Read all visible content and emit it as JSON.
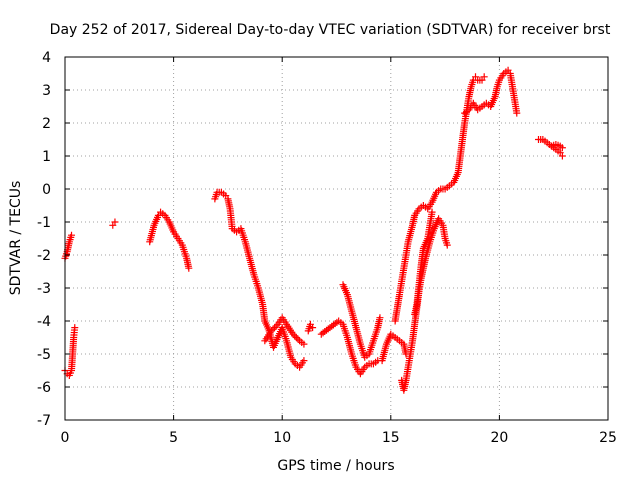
{
  "chart_data": {
    "type": "scatter",
    "title": "Day 252 of 2017, Sidereal Day-to-day VTEC variation (SDTVAR) for receiver brst",
    "xlabel": "GPS time / hours",
    "ylabel": "SDTVAR / TECUs",
    "xlim": [
      0,
      25
    ],
    "ylim": [
      -7,
      4
    ],
    "xticks": [
      0,
      5,
      10,
      15,
      20,
      25
    ],
    "yticks": [
      -7,
      -6,
      -5,
      -4,
      -3,
      -2,
      -1,
      0,
      1,
      2,
      3,
      4
    ],
    "grid": true,
    "marker": "+",
    "colors": {
      "series": "#ff0000",
      "grid": "#a0a0a0",
      "axes": "#000000"
    },
    "segments": [
      [
        [
          0.0,
          -2.1
        ],
        [
          0.1,
          -1.9
        ],
        [
          0.2,
          -1.6
        ],
        [
          0.3,
          -1.4
        ]
      ],
      [
        [
          0.0,
          -5.5
        ],
        [
          0.1,
          -5.6
        ],
        [
          0.2,
          -5.65
        ],
        [
          0.3,
          -5.5
        ],
        [
          0.35,
          -5.0
        ],
        [
          0.4,
          -4.5
        ],
        [
          0.45,
          -4.2
        ]
      ],
      [
        [
          2.2,
          -1.1
        ],
        [
          2.3,
          -1.0
        ]
      ],
      [
        [
          3.9,
          -1.6
        ],
        [
          4.1,
          -1.1
        ],
        [
          4.3,
          -0.8
        ],
        [
          4.4,
          -0.7
        ],
        [
          4.6,
          -0.8
        ],
        [
          4.8,
          -1.0
        ],
        [
          5.0,
          -1.3
        ],
        [
          5.2,
          -1.5
        ],
        [
          5.4,
          -1.7
        ],
        [
          5.6,
          -2.1
        ],
        [
          5.7,
          -2.4
        ]
      ],
      [
        [
          6.9,
          -0.3
        ],
        [
          7.0,
          -0.1
        ],
        [
          7.2,
          -0.1
        ],
        [
          7.4,
          -0.2
        ],
        [
          7.5,
          -0.3
        ],
        [
          7.6,
          -0.6
        ],
        [
          7.7,
          -1.2
        ],
        [
          7.9,
          -1.3
        ],
        [
          8.1,
          -1.2
        ],
        [
          8.3,
          -1.6
        ],
        [
          8.5,
          -2.1
        ],
        [
          8.7,
          -2.6
        ],
        [
          8.9,
          -3.0
        ],
        [
          9.1,
          -3.5
        ],
        [
          9.2,
          -4.0
        ],
        [
          9.4,
          -4.3
        ],
        [
          9.6,
          -4.8
        ],
        [
          9.8,
          -4.5
        ],
        [
          10.0,
          -4.2
        ],
        [
          10.2,
          -4.6
        ],
        [
          10.4,
          -5.1
        ],
        [
          10.6,
          -5.3
        ],
        [
          10.8,
          -5.4
        ],
        [
          11.0,
          -5.2
        ]
      ],
      [
        [
          9.2,
          -4.6
        ],
        [
          9.5,
          -4.3
        ],
        [
          9.8,
          -4.1
        ],
        [
          10.0,
          -3.9
        ],
        [
          10.2,
          -4.1
        ],
        [
          10.5,
          -4.4
        ],
        [
          10.8,
          -4.6
        ],
        [
          11.0,
          -4.7
        ]
      ],
      [
        [
          11.2,
          -4.3
        ],
        [
          11.3,
          -4.1
        ],
        [
          11.4,
          -4.2
        ]
      ],
      [
        [
          11.8,
          -4.4
        ],
        [
          12.2,
          -4.2
        ],
        [
          12.6,
          -4.0
        ],
        [
          12.8,
          -4.1
        ],
        [
          13.0,
          -4.5
        ],
        [
          13.2,
          -5.0
        ],
        [
          13.4,
          -5.4
        ],
        [
          13.6,
          -5.6
        ],
        [
          13.8,
          -5.4
        ],
        [
          14.0,
          -5.3
        ],
        [
          14.2,
          -5.3
        ],
        [
          14.4,
          -5.2
        ]
      ],
      [
        [
          12.8,
          -2.9
        ],
        [
          13.0,
          -3.2
        ],
        [
          13.2,
          -3.7
        ],
        [
          13.4,
          -4.2
        ],
        [
          13.6,
          -4.7
        ],
        [
          13.8,
          -5.1
        ],
        [
          14.0,
          -5.0
        ],
        [
          14.2,
          -4.6
        ],
        [
          14.4,
          -4.2
        ],
        [
          14.5,
          -3.9
        ]
      ],
      [
        [
          14.6,
          -5.2
        ],
        [
          14.8,
          -4.7
        ],
        [
          15.0,
          -4.4
        ],
        [
          15.2,
          -4.5
        ],
        [
          15.4,
          -4.6
        ],
        [
          15.6,
          -4.7
        ],
        [
          15.7,
          -5.0
        ]
      ],
      [
        [
          15.2,
          -4.0
        ],
        [
          15.4,
          -3.2
        ],
        [
          15.5,
          -2.8
        ],
        [
          15.6,
          -2.4
        ],
        [
          15.7,
          -2.0
        ],
        [
          15.8,
          -1.6
        ],
        [
          16.0,
          -1.1
        ],
        [
          16.1,
          -0.8
        ],
        [
          16.3,
          -0.6
        ],
        [
          16.5,
          -0.5
        ],
        [
          16.7,
          -0.6
        ],
        [
          16.9,
          -0.4
        ],
        [
          17.1,
          -0.1
        ],
        [
          17.3,
          0.0
        ],
        [
          17.5,
          0.0
        ],
        [
          17.7,
          0.1
        ],
        [
          17.9,
          0.2
        ],
        [
          18.1,
          0.5
        ],
        [
          18.2,
          1.0
        ],
        [
          18.3,
          1.5
        ],
        [
          18.4,
          2.0
        ],
        [
          18.5,
          2.4
        ],
        [
          18.6,
          2.8
        ],
        [
          18.7,
          3.1
        ],
        [
          18.8,
          3.3
        ],
        [
          18.9,
          3.4
        ],
        [
          19.0,
          3.3
        ],
        [
          19.2,
          3.3
        ],
        [
          19.3,
          3.4
        ]
      ],
      [
        [
          15.5,
          -5.8
        ],
        [
          15.6,
          -6.1
        ],
        [
          15.7,
          -5.8
        ],
        [
          15.8,
          -5.4
        ],
        [
          15.9,
          -5.0
        ],
        [
          16.0,
          -4.6
        ],
        [
          16.1,
          -4.1
        ],
        [
          16.2,
          -3.6
        ],
        [
          16.3,
          -3.1
        ],
        [
          16.4,
          -2.7
        ],
        [
          16.5,
          -2.4
        ],
        [
          16.6,
          -2.1
        ],
        [
          16.8,
          -1.6
        ],
        [
          17.0,
          -1.2
        ],
        [
          17.2,
          -0.9
        ],
        [
          17.4,
          -1.1
        ],
        [
          17.5,
          -1.5
        ],
        [
          17.6,
          -1.7
        ]
      ],
      [
        [
          16.1,
          -3.8
        ],
        [
          16.2,
          -3.5
        ],
        [
          16.3,
          -2.9
        ],
        [
          16.4,
          -2.3
        ],
        [
          16.5,
          -1.8
        ],
        [
          16.7,
          -1.5
        ],
        [
          16.8,
          -1.1
        ],
        [
          16.9,
          -0.7
        ]
      ],
      [
        [
          18.4,
          2.3
        ],
        [
          18.6,
          2.4
        ],
        [
          18.8,
          2.6
        ],
        [
          19.0,
          2.4
        ],
        [
          19.2,
          2.5
        ],
        [
          19.4,
          2.6
        ],
        [
          19.6,
          2.5
        ],
        [
          19.8,
          2.8
        ],
        [
          19.9,
          3.1
        ],
        [
          20.0,
          3.3
        ],
        [
          20.2,
          3.5
        ],
        [
          20.4,
          3.6
        ],
        [
          20.5,
          3.5
        ],
        [
          20.6,
          3.1
        ],
        [
          20.7,
          2.7
        ],
        [
          20.8,
          2.3
        ]
      ],
      [
        [
          21.8,
          1.5
        ],
        [
          22.0,
          1.5
        ],
        [
          22.2,
          1.4
        ],
        [
          22.4,
          1.3
        ],
        [
          22.6,
          1.2
        ],
        [
          22.8,
          1.1
        ],
        [
          22.9,
          1.0
        ]
      ],
      [
        [
          22.4,
          1.3
        ],
        [
          22.6,
          1.35
        ],
        [
          22.8,
          1.3
        ],
        [
          22.9,
          1.25
        ]
      ]
    ]
  }
}
